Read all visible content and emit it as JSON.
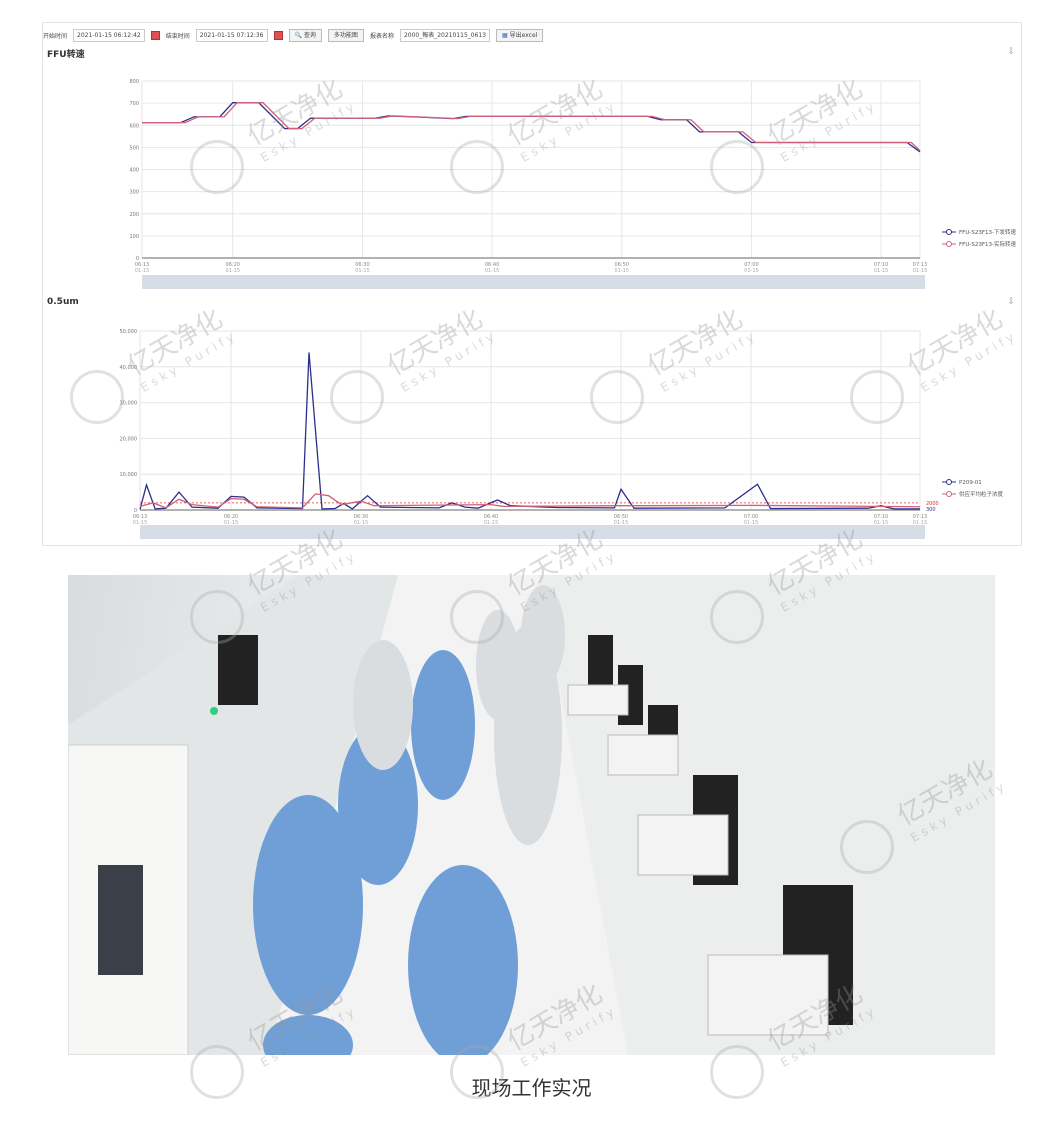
{
  "toolbar": {
    "start_label": "开始时间",
    "start_value": "2021-01-15 06:12:42",
    "end_label": "结束时间",
    "end_value": "2021-01-15 07:12:36",
    "query_button": "查询",
    "multi_button": "多功能图",
    "report_label": "报表名称",
    "report_value": "2000_報表_20210115_0613",
    "export_button": "导出excel"
  },
  "watermark": {
    "text": "亿天净化",
    "sub": "Esky Purify"
  },
  "caption": "现场工作实况",
  "chart_data": [
    {
      "type": "line",
      "title": "FFU转速",
      "ylim": [
        0,
        800
      ],
      "yticks": [
        0,
        100,
        200,
        300,
        400,
        500,
        600,
        700,
        800
      ],
      "xticks": [
        [
          "06:13",
          "01-15"
        ],
        [
          "06:20",
          "01-15"
        ],
        [
          "06:30",
          "01-15"
        ],
        [
          "06:40",
          "01-15"
        ],
        [
          "06:50",
          "01-15"
        ],
        [
          "07:00",
          "01-15"
        ],
        [
          "07:10",
          "01-15"
        ],
        [
          "07:13",
          "01-15"
        ]
      ],
      "xlim": [
        "06:13:00",
        "07:13:00"
      ],
      "grid": true,
      "legend": "right",
      "series": [
        {
          "name": "FFU-S23F13-下发转速",
          "color": "#2b2f8a",
          "points": [
            [
              "06:13:00",
              612
            ],
            [
              "06:16:00",
              612
            ],
            [
              "06:17:00",
              638
            ],
            [
              "06:19:00",
              638
            ],
            [
              "06:20:00",
              702
            ],
            [
              "06:22:00",
              702
            ],
            [
              "06:24:00",
              585
            ],
            [
              "06:25:00",
              585
            ],
            [
              "06:26:00",
              632
            ],
            [
              "06:31:00",
              632
            ],
            [
              "06:32:00",
              642
            ],
            [
              "06:34:00",
              638
            ],
            [
              "06:37:00",
              630
            ],
            [
              "06:38:00",
              640
            ],
            [
              "06:52:00",
              640
            ],
            [
              "06:53:00",
              625
            ],
            [
              "06:55:00",
              625
            ],
            [
              "06:56:00",
              570
            ],
            [
              "06:59:00",
              570
            ],
            [
              "07:00:00",
              522
            ],
            [
              "07:12:00",
              522
            ],
            [
              "07:13:00",
              480
            ]
          ]
        },
        {
          "name": "FFU-S23F13-实际转速",
          "color": "#d0607a",
          "points": [
            [
              "06:13:00",
              612
            ],
            [
              "06:16:20",
              612
            ],
            [
              "06:17:20",
              638
            ],
            [
              "06:19:20",
              638
            ],
            [
              "06:20:20",
              702
            ],
            [
              "06:22:20",
              702
            ],
            [
              "06:24:20",
              585
            ],
            [
              "06:25:20",
              585
            ],
            [
              "06:26:20",
              632
            ],
            [
              "06:31:20",
              632
            ],
            [
              "06:32:20",
              642
            ],
            [
              "06:34:20",
              638
            ],
            [
              "06:37:20",
              630
            ],
            [
              "06:38:20",
              640
            ],
            [
              "06:52:20",
              640
            ],
            [
              "06:53:20",
              625
            ],
            [
              "06:55:20",
              625
            ],
            [
              "06:56:20",
              570
            ],
            [
              "06:59:20",
              570
            ],
            [
              "07:00:20",
              522
            ],
            [
              "07:12:20",
              522
            ],
            [
              "07:13:00",
              485
            ]
          ]
        }
      ]
    },
    {
      "type": "line",
      "title": "0.5um",
      "ylim": [
        0,
        50000
      ],
      "yticks": [
        0,
        10000,
        20000,
        30000,
        40000,
        50000
      ],
      "ytick_labels": [
        "0",
        "10,000",
        "20,000",
        "30,000",
        "40,000",
        "50,000"
      ],
      "xticks": [
        [
          "06:13",
          "01-15"
        ],
        [
          "06:20",
          "01-15"
        ],
        [
          "06:30",
          "01-15"
        ],
        [
          "06:40",
          "01-15"
        ],
        [
          "06:50",
          "01-15"
        ],
        [
          "07:00",
          "01-15"
        ],
        [
          "07:10",
          "01-15"
        ],
        [
          "07:13",
          "01-15"
        ]
      ],
      "xlim": [
        "06:13:00",
        "07:13:00"
      ],
      "grid": true,
      "legend": "right",
      "threshold": {
        "value": 2000,
        "label": "2000",
        "color": "#e03030"
      },
      "baseline_label": "300",
      "series": [
        {
          "name": "P209-01",
          "color": "#2b2f8a",
          "points": [
            [
              "06:13:00",
              200
            ],
            [
              "06:13:30",
              7000
            ],
            [
              "06:14:10",
              300
            ],
            [
              "06:15:00",
              500
            ],
            [
              "06:16:00",
              5000
            ],
            [
              "06:17:00",
              800
            ],
            [
              "06:19:00",
              500
            ],
            [
              "06:20:00",
              3800
            ],
            [
              "06:21:00",
              3600
            ],
            [
              "06:22:00",
              600
            ],
            [
              "06:25:30",
              400
            ],
            [
              "06:26:00",
              44000
            ],
            [
              "06:27:00",
              300
            ],
            [
              "06:28:00",
              400
            ],
            [
              "06:28:40",
              1800
            ],
            [
              "06:29:20",
              300
            ],
            [
              "06:30:30",
              4000
            ],
            [
              "06:31:30",
              800
            ],
            [
              "06:36:00",
              600
            ],
            [
              "06:37:00",
              2000
            ],
            [
              "06:38:00",
              800
            ],
            [
              "06:39:00",
              500
            ],
            [
              "06:40:30",
              2800
            ],
            [
              "06:41:30",
              1200
            ],
            [
              "06:45:00",
              700
            ],
            [
              "06:49:30",
              600
            ],
            [
              "06:50:00",
              5800
            ],
            [
              "06:51:00",
              500
            ],
            [
              "06:58:00",
              600
            ],
            [
              "07:00:30",
              7200
            ],
            [
              "07:01:30",
              400
            ],
            [
              "07:09:00",
              500
            ],
            [
              "07:10:00",
              1200
            ],
            [
              "07:11:00",
              300
            ],
            [
              "07:13:00",
              300
            ]
          ]
        },
        {
          "name": "供应平均粒子浓度",
          "color": "#d0607a",
          "points": [
            [
              "06:13:00",
              1000
            ],
            [
              "06:14:00",
              2000
            ],
            [
              "06:15:00",
              600
            ],
            [
              "06:16:00",
              3000
            ],
            [
              "06:17:00",
              1500
            ],
            [
              "06:19:00",
              800
            ],
            [
              "06:20:00",
              3200
            ],
            [
              "06:21:00",
              3000
            ],
            [
              "06:22:00",
              900
            ],
            [
              "06:25:30",
              600
            ],
            [
              "06:26:30",
              4500
            ],
            [
              "06:27:30",
              4000
            ],
            [
              "06:28:30",
              1500
            ],
            [
              "06:30:00",
              2500
            ],
            [
              "06:31:00",
              1200
            ],
            [
              "06:40:00",
              1500
            ],
            [
              "06:41:00",
              1000
            ],
            [
              "06:50:00",
              1200
            ],
            [
              "07:00:00",
              1300
            ],
            [
              "07:13:00",
              900
            ]
          ]
        }
      ]
    }
  ]
}
